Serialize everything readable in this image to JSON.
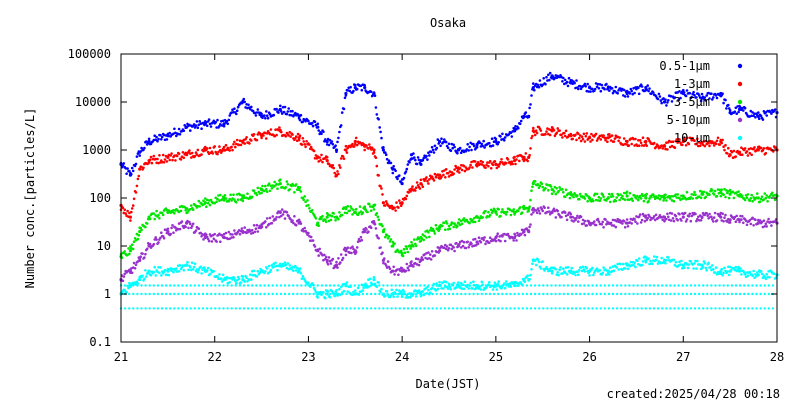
{
  "chart_data": {
    "type": "scatter",
    "title": "Osaka",
    "xlabel": "Date(JST)",
    "ylabel": "Number conc.[particles/L]",
    "created": "created:2025/04/28 00:18",
    "x_scale": "linear",
    "y_scale": "log",
    "xlim": [
      21,
      28
    ],
    "ylim": [
      0.1,
      100000
    ],
    "x_ticks": [
      "21",
      "22",
      "23",
      "24",
      "25",
      "26",
      "27",
      "28"
    ],
    "y_ticks": [
      "0.1",
      "1",
      "10",
      "100",
      "1000",
      "10000",
      "100000"
    ],
    "grid": false,
    "legend_position": "top-right",
    "series": [
      {
        "name": "0.5-1μm",
        "color": "#0000ff",
        "x": [
          21.0,
          21.1,
          21.2,
          21.3,
          21.5,
          21.7,
          21.9,
          22.1,
          22.3,
          22.5,
          22.7,
          22.9,
          23.1,
          23.2,
          23.3,
          23.4,
          23.5,
          23.6,
          23.7,
          23.8,
          23.9,
          24.0,
          24.1,
          24.2,
          24.4,
          24.6,
          24.8,
          25.0,
          25.2,
          25.3,
          25.35,
          25.4,
          25.6,
          25.8,
          26.0,
          26.2,
          26.4,
          26.6,
          26.8,
          27.0,
          27.2,
          27.4,
          27.5,
          27.6,
          27.8,
          28.0
        ],
        "y": [
          500,
          300,
          900,
          1500,
          2000,
          3000,
          3500,
          3500,
          10000,
          5000,
          7000,
          5000,
          3000,
          1500,
          1000,
          15000,
          20000,
          20000,
          15000,
          1000,
          400,
          200,
          800,
          500,
          1500,
          1000,
          1300,
          1500,
          2500,
          5000,
          5000,
          20000,
          35000,
          25000,
          20000,
          20000,
          15000,
          20000,
          10000,
          15000,
          12000,
          15000,
          6000,
          7000,
          5000,
          6000
        ]
      },
      {
        "name": "1-3μm",
        "color": "#ff0000",
        "x": [
          21.0,
          21.1,
          21.2,
          21.3,
          21.5,
          21.7,
          21.9,
          22.1,
          22.3,
          22.5,
          22.7,
          22.9,
          23.1,
          23.2,
          23.3,
          23.4,
          23.5,
          23.6,
          23.7,
          23.8,
          23.9,
          24.0,
          24.1,
          24.2,
          24.4,
          24.6,
          24.8,
          25.0,
          25.2,
          25.3,
          25.35,
          25.4,
          25.6,
          25.8,
          26.0,
          26.2,
          26.4,
          26.6,
          26.8,
          27.0,
          27.2,
          27.4,
          27.5,
          27.6,
          27.8,
          28.0
        ],
        "y": [
          70,
          40,
          400,
          600,
          700,
          800,
          1000,
          1000,
          1500,
          2000,
          2500,
          1800,
          700,
          600,
          300,
          1000,
          1500,
          1200,
          1000,
          80,
          60,
          80,
          150,
          200,
          300,
          400,
          500,
          500,
          600,
          700,
          700,
          2500,
          2500,
          2000,
          1800,
          1800,
          1500,
          1500,
          1200,
          1500,
          1400,
          1500,
          800,
          900,
          1000,
          1000
        ]
      },
      {
        "name": "3-5μm",
        "color": "#00e600",
        "x": [
          21.0,
          21.1,
          21.2,
          21.3,
          21.5,
          21.7,
          21.9,
          22.1,
          22.3,
          22.5,
          22.7,
          22.9,
          23.1,
          23.2,
          23.3,
          23.4,
          23.5,
          23.6,
          23.7,
          23.8,
          23.9,
          24.0,
          24.1,
          24.2,
          24.4,
          24.6,
          24.8,
          25.0,
          25.2,
          25.3,
          25.35,
          25.4,
          25.6,
          25.8,
          26.0,
          26.2,
          26.4,
          26.6,
          26.8,
          27.0,
          27.2,
          27.4,
          27.5,
          27.6,
          27.8,
          28.0
        ],
        "y": [
          6,
          8,
          20,
          40,
          50,
          60,
          80,
          100,
          100,
          150,
          200,
          150,
          30,
          40,
          40,
          60,
          50,
          60,
          70,
          20,
          10,
          7,
          10,
          15,
          25,
          30,
          40,
          50,
          50,
          60,
          60,
          200,
          150,
          120,
          100,
          100,
          110,
          100,
          100,
          110,
          120,
          130,
          120,
          110,
          100,
          110
        ]
      },
      {
        "name": "5-10μm",
        "color": "#9932cc",
        "x": [
          21.0,
          21.1,
          21.2,
          21.3,
          21.5,
          21.7,
          21.9,
          22.1,
          22.3,
          22.5,
          22.7,
          22.9,
          23.1,
          23.2,
          23.3,
          23.4,
          23.5,
          23.6,
          23.7,
          23.8,
          23.9,
          24.0,
          24.1,
          24.2,
          24.4,
          24.6,
          24.8,
          25.0,
          25.2,
          25.3,
          25.35,
          25.4,
          25.6,
          25.8,
          26.0,
          26.2,
          26.4,
          26.6,
          26.8,
          27.0,
          27.2,
          27.4,
          27.5,
          27.6,
          27.8,
          28.0
        ],
        "y": [
          2,
          3,
          5,
          10,
          20,
          30,
          15,
          15,
          20,
          25,
          50,
          30,
          8,
          5,
          4,
          8,
          8,
          20,
          30,
          5,
          3,
          3,
          4,
          5,
          8,
          10,
          12,
          15,
          15,
          20,
          20,
          60,
          50,
          40,
          30,
          30,
          30,
          40,
          40,
          40,
          40,
          40,
          35,
          35,
          30,
          30
        ]
      },
      {
        "name": "10-μm",
        "color": "#00ffff",
        "x": [
          21.0,
          21.1,
          21.2,
          21.3,
          21.5,
          21.7,
          21.9,
          22.1,
          22.3,
          22.5,
          22.7,
          22.9,
          23.1,
          23.2,
          23.3,
          23.4,
          23.5,
          23.6,
          23.7,
          23.8,
          23.9,
          24.0,
          24.1,
          24.2,
          24.4,
          24.6,
          24.8,
          25.0,
          25.2,
          25.3,
          25.35,
          25.4,
          25.6,
          25.8,
          26.0,
          26.2,
          26.4,
          26.6,
          26.8,
          27.0,
          27.2,
          27.4,
          27.5,
          27.6,
          27.8,
          28.0
        ],
        "y": [
          1,
          1.5,
          2,
          3,
          3,
          4,
          3,
          2,
          2,
          3,
          4,
          3,
          1,
          1,
          1,
          1.5,
          1,
          1.5,
          2,
          1,
          1,
          1,
          1,
          1,
          1.5,
          1.5,
          1.5,
          1.5,
          1.5,
          2,
          2,
          5,
          3,
          3,
          3,
          3,
          4,
          5,
          5,
          4,
          4,
          3,
          3,
          3,
          2.5,
          2.5
        ],
        "baseline_levels": [
          0.5,
          1,
          1.5
        ]
      }
    ]
  }
}
